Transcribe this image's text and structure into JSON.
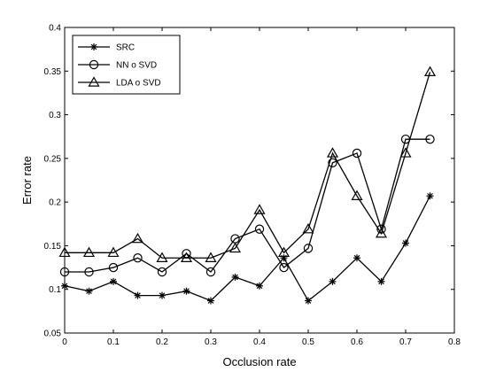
{
  "chart_data": {
    "type": "line",
    "title": "",
    "xlabel": "Occlusion rate",
    "ylabel": "Error rate",
    "xlim": [
      0,
      0.8
    ],
    "ylim": [
      0.05,
      0.4
    ],
    "x_ticks": [
      "0",
      "0.1",
      "0.2",
      "0.3",
      "0.4",
      "0.5",
      "0.6",
      "0.7",
      "0.8"
    ],
    "y_ticks": [
      "0.05",
      "0.1",
      "0.15",
      "0.2",
      "0.25",
      "0.3",
      "0.35",
      "0.4"
    ],
    "grid": false,
    "legend_position": "top-left",
    "x": [
      0,
      0.05,
      0.1,
      0.15,
      0.2,
      0.25,
      0.3,
      0.35,
      0.4,
      0.45,
      0.5,
      0.55,
      0.6,
      0.65,
      0.7,
      0.75
    ],
    "series": [
      {
        "name": "SRC",
        "marker": "asterisk",
        "values": [
          0.104,
          0.098,
          0.109,
          0.093,
          0.093,
          0.098,
          0.087,
          0.114,
          0.104,
          0.136,
          0.087,
          0.109,
          0.136,
          0.109,
          0.153,
          0.207
        ]
      },
      {
        "name": "NN o SVD",
        "marker": "circle",
        "values": [
          0.12,
          0.12,
          0.125,
          0.136,
          0.12,
          0.141,
          0.12,
          0.158,
          0.169,
          0.125,
          0.147,
          0.245,
          0.256,
          0.169,
          0.272,
          0.272
        ]
      },
      {
        "name": "LDA o SVD",
        "marker": "triangle",
        "values": [
          0.142,
          0.142,
          0.142,
          0.158,
          0.136,
          0.136,
          0.136,
          0.147,
          0.191,
          0.142,
          0.169,
          0.256,
          0.207,
          0.164,
          0.256,
          0.349
        ]
      }
    ]
  }
}
